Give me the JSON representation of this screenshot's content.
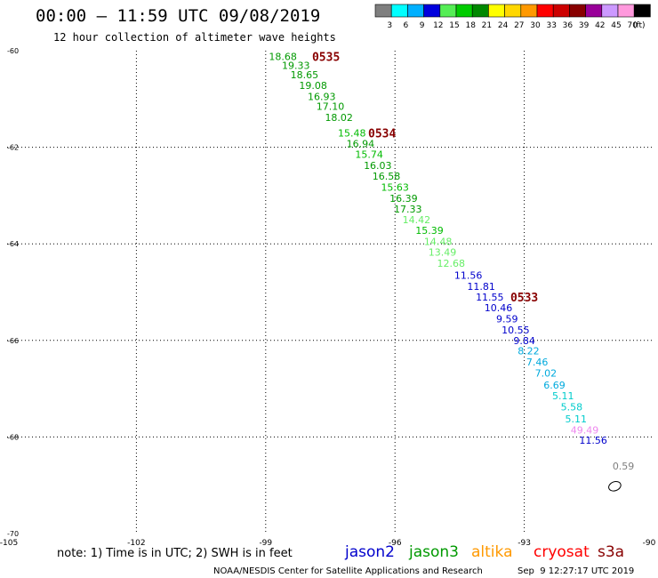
{
  "header": {
    "title": "00:00 – 11:59 UTC 09/08/2019",
    "subtitle": "12 hour collection of altimeter wave heights"
  },
  "colorbar": {
    "unit": "(ft)",
    "bins": [
      {
        "label": "3",
        "color": "#7f7f7f"
      },
      {
        "label": "6",
        "color": "#00ffff"
      },
      {
        "label": "9",
        "color": "#00b0ff"
      },
      {
        "label": "12",
        "color": "#0000dd"
      },
      {
        "label": "15",
        "color": "#55ee55"
      },
      {
        "label": "18",
        "color": "#00cc00"
      },
      {
        "label": "21",
        "color": "#008800"
      },
      {
        "label": "24",
        "color": "#ffff00"
      },
      {
        "label": "27",
        "color": "#ffd700"
      },
      {
        "label": "30",
        "color": "#ff9900"
      },
      {
        "label": "33",
        "color": "#ff0000"
      },
      {
        "label": "36",
        "color": "#cc0000"
      },
      {
        "label": "39",
        "color": "#880000"
      },
      {
        "label": "42",
        "color": "#990099"
      },
      {
        "label": "45",
        "color": "#cc99ff"
      },
      {
        "label": "70",
        "color": "#ff99dd"
      },
      {
        "label": "",
        "color": "#000000"
      }
    ]
  },
  "footer": {
    "note": "note: 1) Time is in UTC; 2) SWH is in feet",
    "satellites": [
      {
        "name": "jason2",
        "color": "#0000cc"
      },
      {
        "name": "jason3",
        "color": "#009900"
      },
      {
        "name": "altika",
        "color": "#ff9900"
      },
      {
        "name": "cryosat",
        "color": "#ff0000"
      },
      {
        "name": "s3a",
        "color": "#880000"
      }
    ],
    "credit": "NOAA/NESDIS Center for Satellite Applications and Research",
    "timestamp": "Sep  9 12:27:17 UTC 2019"
  },
  "chart_data": {
    "type": "scatter",
    "xlim": [
      -105,
      -90
    ],
    "ylim": [
      -70,
      -60
    ],
    "x_ticks": [
      "-105",
      "-102",
      "-99",
      "-96",
      "-93",
      "-90"
    ],
    "y_ticks": [
      "-60",
      "-62",
      "-64",
      "-66",
      "-68",
      "-70"
    ],
    "grid": true,
    "points": [
      {
        "x": -98.6,
        "y": -60.12,
        "v": "18.68",
        "color": "#009900"
      },
      {
        "x": -98.3,
        "y": -60.3,
        "v": "19.33",
        "color": "#009900"
      },
      {
        "x": -98.1,
        "y": -60.5,
        "v": "18.65",
        "color": "#009900"
      },
      {
        "x": -97.9,
        "y": -60.72,
        "v": "19.08",
        "color": "#009900"
      },
      {
        "x": -97.7,
        "y": -60.95,
        "v": "16.93",
        "color": "#009900"
      },
      {
        "x": -97.5,
        "y": -61.15,
        "v": "17.10",
        "color": "#009900"
      },
      {
        "x": -97.3,
        "y": -61.38,
        "v": "18.02",
        "color": "#009900"
      },
      {
        "x": -97.0,
        "y": -61.7,
        "v": "15.48",
        "color": "#00bb00"
      },
      {
        "x": -96.8,
        "y": -61.92,
        "v": "16.94",
        "color": "#009900"
      },
      {
        "x": -96.6,
        "y": -62.15,
        "v": "15.74",
        "color": "#00bb00"
      },
      {
        "x": -96.4,
        "y": -62.38,
        "v": "16.03",
        "color": "#009900"
      },
      {
        "x": -96.2,
        "y": -62.6,
        "v": "16.58",
        "color": "#009900"
      },
      {
        "x": -96.0,
        "y": -62.83,
        "v": "15.63",
        "color": "#00bb00"
      },
      {
        "x": -95.8,
        "y": -63.06,
        "v": "16.39",
        "color": "#009900"
      },
      {
        "x": -95.7,
        "y": -63.28,
        "v": "17.33",
        "color": "#009900"
      },
      {
        "x": -95.5,
        "y": -63.5,
        "v": "14.42",
        "color": "#66ee66"
      },
      {
        "x": -95.2,
        "y": -63.72,
        "v": "15.39",
        "color": "#00bb00"
      },
      {
        "x": -95.0,
        "y": -63.95,
        "v": "14.48",
        "color": "#66ee66"
      },
      {
        "x": -94.9,
        "y": -64.17,
        "v": "13.49",
        "color": "#66ee66"
      },
      {
        "x": -94.7,
        "y": -64.4,
        "v": "12.68",
        "color": "#66ee66"
      },
      {
        "x": -94.3,
        "y": -64.65,
        "v": "11.56",
        "color": "#0000cc"
      },
      {
        "x": -94.0,
        "y": -64.88,
        "v": "11.81",
        "color": "#0000cc"
      },
      {
        "x": -93.8,
        "y": -65.1,
        "v": "11.55",
        "color": "#0000cc"
      },
      {
        "x": -93.6,
        "y": -65.32,
        "v": "10.46",
        "color": "#0000cc"
      },
      {
        "x": -93.4,
        "y": -65.55,
        "v": "9.59",
        "color": "#0000cc"
      },
      {
        "x": -93.2,
        "y": -65.78,
        "v": "10.55",
        "color": "#0000cc"
      },
      {
        "x": -93.0,
        "y": -66.0,
        "v": "9.84",
        "color": "#0000cc"
      },
      {
        "x": -92.9,
        "y": -66.22,
        "v": "8.22",
        "color": "#00aadd"
      },
      {
        "x": -92.7,
        "y": -66.45,
        "v": "7.46",
        "color": "#00aadd"
      },
      {
        "x": -92.5,
        "y": -66.68,
        "v": "7.02",
        "color": "#00aadd"
      },
      {
        "x": -92.3,
        "y": -66.92,
        "v": "6.69",
        "color": "#00aadd"
      },
      {
        "x": -92.1,
        "y": -67.15,
        "v": "5.11",
        "color": "#00cccc"
      },
      {
        "x": -91.9,
        "y": -67.38,
        "v": "5.58",
        "color": "#00cccc"
      },
      {
        "x": -91.8,
        "y": -67.62,
        "v": "5.11",
        "color": "#00cccc"
      },
      {
        "x": -91.6,
        "y": -67.85,
        "v": "49.49",
        "color": "#ee88ee"
      },
      {
        "x": -91.4,
        "y": -68.07,
        "v": "11.56",
        "color": "#0000cc"
      },
      {
        "x": -90.7,
        "y": -68.6,
        "v": "0.59",
        "color": "#7f7f7f"
      }
    ],
    "time_labels": [
      {
        "x": -97.6,
        "y": -60.12,
        "text": "0535",
        "color": "#880000"
      },
      {
        "x": -96.3,
        "y": -61.7,
        "text": "0534",
        "color": "#880000"
      },
      {
        "x": -93.0,
        "y": -65.1,
        "text": "0533",
        "color": "#880000"
      }
    ],
    "coast_contour": {
      "x": -90.9,
      "y": -69.02
    }
  }
}
